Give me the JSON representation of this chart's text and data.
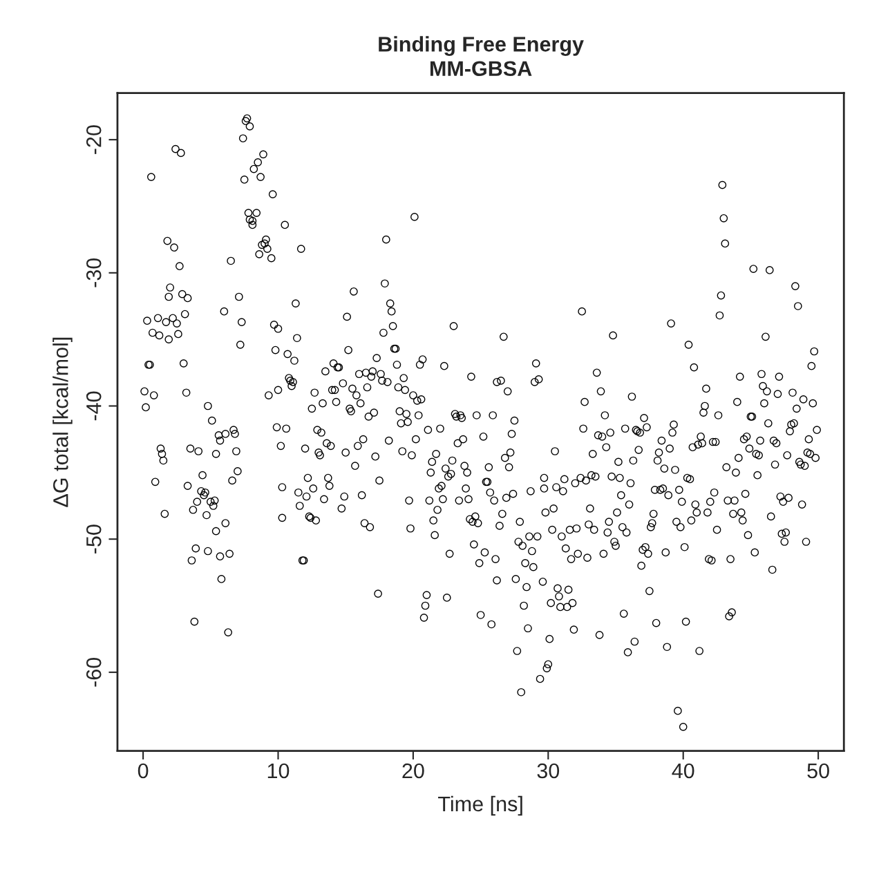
{
  "chart_data": {
    "type": "scatter",
    "title": "Binding Free Energy\nMM-GBSA",
    "xlabel": "Time [ns]",
    "ylabel": "ΔG total [kcal/mol]",
    "xlim": [
      -1.9,
      51.9
    ],
    "ylim": [
      -65.9,
      -16.5
    ],
    "xticks": [
      0,
      10,
      20,
      30,
      40,
      50
    ],
    "yticks": [
      -60,
      -50,
      -40,
      -30,
      -20
    ],
    "grid": false,
    "marker": "circle",
    "series": [
      {
        "color": "#000000",
        "x": [
          0.1,
          0.2,
          0.3,
          0.4,
          0.5,
          0.6,
          0.7,
          0.8,
          0.9,
          1.1,
          1.2,
          1.3,
          1.4,
          1.5,
          1.6,
          1.7,
          1.8,
          1.9,
          1.9,
          2.0,
          2.2,
          2.3,
          2.4,
          2.5,
          2.6,
          2.7,
          2.8,
          2.9,
          3.0,
          3.1,
          3.2,
          3.3,
          3.3,
          3.5,
          3.6,
          3.7,
          3.8,
          3.9,
          4.0,
          4.1,
          4.3,
          4.4,
          4.5,
          4.6,
          4.7,
          4.8,
          4.8,
          5.0,
          5.1,
          5.2,
          5.3,
          5.4,
          5.4,
          5.6,
          5.7,
          5.7,
          5.8,
          6.0,
          6.1,
          6.1,
          6.3,
          6.4,
          6.5,
          6.6,
          6.7,
          6.8,
          6.9,
          7.0,
          7.1,
          7.2,
          7.3,
          7.4,
          7.5,
          7.6,
          7.7,
          7.8,
          7.9,
          7.9,
          8.1,
          8.1,
          8.2,
          8.4,
          8.5,
          8.6,
          8.7,
          8.8,
          8.9,
          9.0,
          9.1,
          9.2,
          9.3,
          9.5,
          9.6,
          9.7,
          9.8,
          9.9,
          10.0,
          10.0,
          10.2,
          10.3,
          10.3,
          10.5,
          10.6,
          10.7,
          10.8,
          10.9,
          11.0,
          11.1,
          11.2,
          11.3,
          11.4,
          11.5,
          11.6,
          11.7,
          11.8,
          11.9,
          12.0,
          12.1,
          12.2,
          12.3,
          12.4,
          12.5,
          12.6,
          12.7,
          12.8,
          12.9,
          13.0,
          13.1,
          13.2,
          13.3,
          13.4,
          13.5,
          13.6,
          13.7,
          13.8,
          13.9,
          14.0,
          14.1,
          14.2,
          14.3,
          14.4,
          14.5,
          14.7,
          14.8,
          14.9,
          15.0,
          15.1,
          15.2,
          15.3,
          15.4,
          15.5,
          15.6,
          15.7,
          15.8,
          15.9,
          16.0,
          16.1,
          16.2,
          16.3,
          16.4,
          16.5,
          16.6,
          16.7,
          16.8,
          16.9,
          17.0,
          17.1,
          17.2,
          17.3,
          17.4,
          17.5,
          17.6,
          17.7,
          17.8,
          17.9,
          18.0,
          18.1,
          18.2,
          18.3,
          18.4,
          18.5,
          18.6,
          18.7,
          18.8,
          18.9,
          19.0,
          19.1,
          19.2,
          19.3,
          19.4,
          19.5,
          19.6,
          19.7,
          19.8,
          19.9,
          20.0,
          20.1,
          20.2,
          20.3,
          20.4,
          20.5,
          20.6,
          20.7,
          20.8,
          20.9,
          21.0,
          21.1,
          21.2,
          21.3,
          21.4,
          21.5,
          21.6,
          21.7,
          21.8,
          21.9,
          22.0,
          22.1,
          22.2,
          22.3,
          22.4,
          22.5,
          22.6,
          22.7,
          22.8,
          22.9,
          23.0,
          23.1,
          23.2,
          23.3,
          23.4,
          23.5,
          23.6,
          23.7,
          23.8,
          23.9,
          24.0,
          24.1,
          24.2,
          24.3,
          24.4,
          24.5,
          24.6,
          24.7,
          24.8,
          24.9,
          25.0,
          25.2,
          25.3,
          25.4,
          25.5,
          25.6,
          25.7,
          25.8,
          25.9,
          26.0,
          26.1,
          26.2,
          26.2,
          26.4,
          26.5,
          26.6,
          26.7,
          26.8,
          26.9,
          27.0,
          27.1,
          27.2,
          27.3,
          27.4,
          27.5,
          27.6,
          27.7,
          27.8,
          27.9,
          28.0,
          28.1,
          28.2,
          28.3,
          28.4,
          28.5,
          28.6,
          28.7,
          28.8,
          28.9,
          29.0,
          29.1,
          29.2,
          29.3,
          29.4,
          29.6,
          29.7,
          29.7,
          29.8,
          29.9,
          30.0,
          30.1,
          30.2,
          30.3,
          30.4,
          30.5,
          30.6,
          30.7,
          30.8,
          30.9,
          31.0,
          31.1,
          31.2,
          31.3,
          31.4,
          31.5,
          31.6,
          31.7,
          31.8,
          31.9,
          32.0,
          32.1,
          32.2,
          32.4,
          32.5,
          32.6,
          32.7,
          32.8,
          32.9,
          33.0,
          33.1,
          33.2,
          33.3,
          33.4,
          33.5,
          33.6,
          33.7,
          33.8,
          33.9,
          34.0,
          34.1,
          34.2,
          34.3,
          34.4,
          34.5,
          34.6,
          34.7,
          34.8,
          34.9,
          35.0,
          35.1,
          35.2,
          35.3,
          35.4,
          35.5,
          35.6,
          35.7,
          35.8,
          35.9,
          36.0,
          36.1,
          36.2,
          36.3,
          36.4,
          36.5,
          36.6,
          36.7,
          36.8,
          36.9,
          37.0,
          37.1,
          37.2,
          37.3,
          37.4,
          37.5,
          37.6,
          37.7,
          37.8,
          37.9,
          38.0,
          38.1,
          38.2,
          38.3,
          38.4,
          38.5,
          38.6,
          38.7,
          38.8,
          38.9,
          39.0,
          39.1,
          39.2,
          39.3,
          39.4,
          39.5,
          39.6,
          39.7,
          39.8,
          39.9,
          40.0,
          40.1,
          40.2,
          40.3,
          40.4,
          40.5,
          40.6,
          40.7,
          40.8,
          40.9,
          41.0,
          41.1,
          41.2,
          41.3,
          41.4,
          41.5,
          41.6,
          41.7,
          41.8,
          41.9,
          42.0,
          42.1,
          42.2,
          42.3,
          42.4,
          42.5,
          42.6,
          42.7,
          42.8,
          42.9,
          43.0,
          43.1,
          43.2,
          43.3,
          43.4,
          43.5,
          43.6,
          43.7,
          43.8,
          43.9,
          44.0,
          44.1,
          44.2,
          44.3,
          44.4,
          44.5,
          44.6,
          44.7,
          44.8,
          44.9,
          45.0,
          45.1,
          45.2,
          45.3,
          45.4,
          45.5,
          45.6,
          45.7,
          45.8,
          45.9,
          46.0,
          46.1,
          46.2,
          46.3,
          46.4,
          46.5,
          46.6,
          46.7,
          46.8,
          46.9,
          47.0,
          47.1,
          47.2,
          47.3,
          47.4,
          47.5,
          47.6,
          47.7,
          47.8,
          47.9,
          48.0,
          48.1,
          48.2,
          48.3,
          48.4,
          48.5,
          48.6,
          48.7,
          48.8,
          48.9,
          49.0,
          49.1,
          49.2,
          49.3,
          49.4,
          49.5,
          49.6,
          49.7,
          49.8,
          49.9
        ],
        "values": [
          -38.9,
          -40.1,
          -33.6,
          -36.9,
          -36.9,
          -22.8,
          -34.5,
          -39.2,
          -45.7,
          -33.4,
          -34.7,
          -43.2,
          -43.6,
          -44.1,
          -48.1,
          -33.7,
          -27.6,
          -31.8,
          -35.0,
          -31.1,
          -33.4,
          -28.1,
          -20.7,
          -33.8,
          -34.6,
          -29.5,
          -21.0,
          -31.6,
          -36.8,
          -33.1,
          -39.0,
          -31.9,
          -46.0,
          -43.2,
          -51.6,
          -47.8,
          -56.2,
          -50.7,
          -47.2,
          -43.4,
          -46.4,
          -45.2,
          -46.7,
          -46.5,
          -48.2,
          -40.0,
          -50.9,
          -47.2,
          -41.1,
          -47.5,
          -47.1,
          -43.6,
          -49.4,
          -42.2,
          -42.6,
          -51.3,
          -53.0,
          -32.9,
          -42.1,
          -48.8,
          -57.0,
          -51.1,
          -29.1,
          -45.6,
          -41.8,
          -42.1,
          -43.4,
          -44.9,
          -31.8,
          -35.4,
          -33.7,
          -19.9,
          -23.0,
          -18.6,
          -18.4,
          -25.5,
          -19.0,
          -26.0,
          -26.1,
          -26.4,
          -22.2,
          -25.5,
          -21.7,
          -28.6,
          -22.8,
          -27.9,
          -21.1,
          -27.8,
          -27.5,
          -28.2,
          -39.2,
          -28.9,
          -24.1,
          -33.9,
          -35.8,
          -41.6,
          -38.8,
          -34.2,
          -43.0,
          -46.1,
          -48.4,
          -26.4,
          -41.7,
          -36.1,
          -37.9,
          -38.1,
          -38.5,
          -38.2,
          -36.6,
          -32.3,
          -34.9,
          -46.5,
          -47.5,
          -28.2,
          -51.6,
          -51.6,
          -43.2,
          -46.8,
          -45.4,
          -48.3,
          -48.4,
          -40.2,
          -46.2,
          -39.0,
          -48.6,
          -41.8,
          -43.5,
          -43.7,
          -42.0,
          -39.8,
          -47.0,
          -37.4,
          -42.8,
          -45.4,
          -46.0,
          -43.0,
          -38.8,
          -36.8,
          -38.8,
          -39.7,
          -37.1,
          -37.1,
          -47.7,
          -38.3,
          -46.8,
          -43.5,
          -33.3,
          -35.8,
          -40.2,
          -40.4,
          -38.7,
          -31.4,
          -44.5,
          -39.2,
          -43.0,
          -37.6,
          -39.8,
          -46.7,
          -42.5,
          -48.8,
          -37.5,
          -38.6,
          -40.8,
          -49.1,
          -37.8,
          -37.4,
          -40.5,
          -43.8,
          -36.4,
          -54.1,
          -45.6,
          -37.6,
          -38.1,
          -34.5,
          -30.8,
          -27.5,
          -38.2,
          -42.6,
          -32.3,
          -32.9,
          -34.0,
          -35.7,
          -35.7,
          -36.9,
          -38.6,
          -40.4,
          -41.3,
          -43.4,
          -37.9,
          -38.8,
          -40.6,
          -41.2,
          -47.1,
          -49.2,
          -43.7,
          -39.2,
          -25.8,
          -42.5,
          -39.6,
          -40.7,
          -36.9,
          -39.5,
          -36.5,
          -55.9,
          -55.0,
          -54.2,
          -41.8,
          -47.1,
          -45.0,
          -44.2,
          -48.6,
          -49.7,
          -43.6,
          -47.8,
          -46.2,
          -41.7,
          -46.0,
          -47.0,
          -37.0,
          -44.7,
          -54.4,
          -45.3,
          -51.1,
          -45.1,
          -44.1,
          -34.0,
          -40.6,
          -40.8,
          -42.8,
          -47.1,
          -40.7,
          -40.9,
          -42.5,
          -44.5,
          -46.2,
          -45.0,
          -47.0,
          -48.5,
          -37.8,
          -48.7,
          -50.4,
          -48.3,
          -40.7,
          -48.8,
          -51.8,
          -55.7,
          -42.3,
          -51.0,
          -45.7,
          -45.7,
          -44.6,
          -46.5,
          -56.4,
          -40.7,
          -47.1,
          -51.5,
          -53.1,
          -38.2,
          -49.0,
          -38.1,
          -48.1,
          -34.8,
          -43.9,
          -46.9,
          -38.9,
          -44.6,
          -43.5,
          -42.1,
          -46.6,
          -41.1,
          -53.0,
          -58.4,
          -50.2,
          -48.7,
          -61.5,
          -50.5,
          -55.0,
          -51.8,
          -53.6,
          -56.7,
          -49.8,
          -46.4,
          -50.9,
          -52.1,
          -38.2,
          -36.8,
          -49.8,
          -38.0,
          -60.5,
          -53.2,
          -46.2,
          -45.4,
          -48.0,
          -59.7,
          -59.4,
          -57.5,
          -54.8,
          -49.3,
          -47.7,
          -43.4,
          -46.1,
          -53.7,
          -54.3,
          -55.1,
          -49.8,
          -46.4,
          -45.5,
          -50.7,
          -55.1,
          -53.8,
          -49.3,
          -51.5,
          -54.8,
          -56.8,
          -45.8,
          -49.2,
          -51.1,
          -45.4,
          -32.9,
          -41.7,
          -39.7,
          -45.6,
          -51.4,
          -48.9,
          -47.7,
          -45.2,
          -43.6,
          -49.3,
          -45.3,
          -37.5,
          -42.2,
          -57.2,
          -38.9,
          -42.3,
          -51.1,
          -40.7,
          -43.1,
          -49.5,
          -48.7,
          -42.0,
          -45.3,
          -34.7,
          -50.2,
          -50.5,
          -48.0,
          -44.2,
          -45.4,
          -46.7,
          -49.1,
          -55.6,
          -41.7,
          -49.5,
          -58.5,
          -47.4,
          -45.8,
          -39.3,
          -44.1,
          -57.7,
          -41.8,
          -41.9,
          -43.3,
          -42.0,
          -52.0,
          -50.8,
          -40.9,
          -50.6,
          -41.6,
          -51.1,
          -53.9,
          -49.1,
          -48.8,
          -48.1,
          -46.3,
          -56.3,
          -44.1,
          -43.5,
          -46.3,
          -42.6,
          -46.2,
          -44.7,
          -51.0,
          -58.1,
          -46.7,
          -43.2,
          -33.8,
          -42.0,
          -41.4,
          -44.8,
          -48.7,
          -62.9,
          -46.3,
          -49.1,
          -47.2,
          -64.1,
          -50.6,
          -56.2,
          -45.4,
          -35.4,
          -45.5,
          -48.6,
          -43.1,
          -37.1,
          -47.4,
          -48.0,
          -42.9,
          -58.4,
          -42.3,
          -42.8,
          -40.5,
          -40.0,
          -38.7,
          -48.0,
          -51.5,
          -47.2,
          -51.6,
          -42.7,
          -46.5,
          -42.7,
          -49.3,
          -40.7,
          -33.2,
          -31.7,
          -23.4,
          -25.9,
          -27.8,
          -44.6,
          -47.1,
          -55.8,
          -51.5,
          -55.5,
          -48.1,
          -47.1,
          -45.0,
          -39.7,
          -43.9,
          -37.8,
          -48.0,
          -48.6,
          -42.5,
          -46.6,
          -42.3,
          -49.7,
          -43.2,
          -40.8,
          -40.8,
          -29.7,
          -51.0,
          -43.6,
          -45.2,
          -43.7,
          -42.6,
          -37.6,
          -38.5,
          -39.8,
          -34.8,
          -38.9,
          -41.3,
          -29.8,
          -48.3,
          -52.3,
          -42.6,
          -44.4,
          -42.8,
          -39.1,
          -37.8,
          -46.8,
          -49.6,
          -47.2,
          -50.2,
          -49.5,
          -43.7,
          -46.9,
          -41.9,
          -41.4,
          -39.0,
          -41.3,
          -31.0,
          -40.2,
          -32.5,
          -44.2,
          -44.4,
          -47.4,
          -39.5,
          -44.5,
          -50.2,
          -43.5,
          -42.5,
          -43.6,
          -37.0,
          -39.8,
          -35.9,
          -43.9,
          -41.8
        ]
      }
    ]
  }
}
